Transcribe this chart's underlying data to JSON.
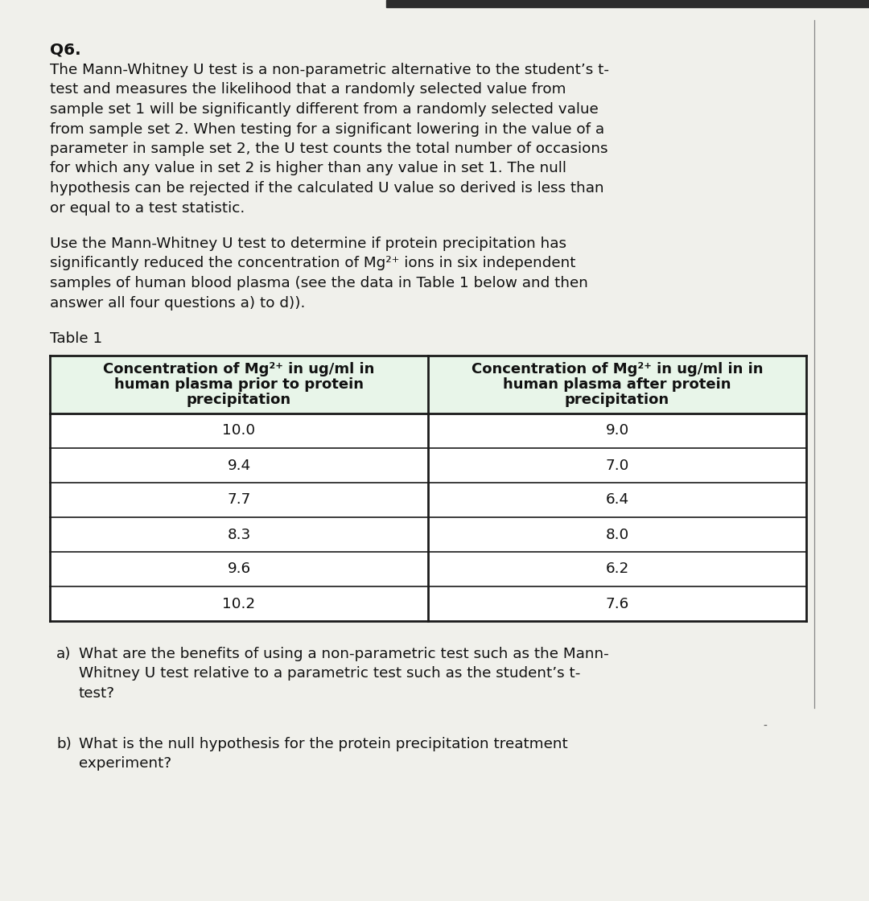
{
  "background_color": "#f0f0eb",
  "top_bar_color": "#2c2c2c",
  "q_label": "Q6.",
  "intro_lines": [
    "The Mann-Whitney U test is a non-parametric alternative to the student’s t-",
    "test and measures the likelihood that a randomly selected value from",
    "sample set 1 will be significantly different from a randomly selected value",
    "from sample set 2. When testing for a significant lowering in the value of a",
    "parameter in sample set 2, the U test counts the total number of occasions",
    "for which any value in set 2 is higher than any value in set 1. The null",
    "hypothesis can be rejected if the calculated U value so derived is less than",
    "or equal to a test statistic."
  ],
  "use_lines": [
    "Use the Mann-Whitney U test to determine if protein precipitation has",
    "significantly reduced the concentration of Mg²⁺ ions in six independent",
    "samples of human blood plasma (see the data in Table 1 below and then",
    "answer all four questions a) to d))."
  ],
  "table_label": "Table 1",
  "col1_header": [
    "Concentration of Mg²⁺ in ug/ml in",
    "human plasma prior to protein",
    "precipitation"
  ],
  "col2_header": [
    "Concentration of Mg²⁺ in ug/ml in in",
    "human plasma after protein",
    "precipitation"
  ],
  "col1_data": [
    "10.0",
    "9.4",
    "7.7",
    "8.3",
    "9.6",
    "10.2"
  ],
  "col2_data": [
    "9.0",
    "7.0",
    "6.4",
    "8.0",
    "6.2",
    "7.6"
  ],
  "header_bg": "#e8f5e9",
  "table_border_color": "#1a1a1a",
  "q_a_label": "a)",
  "q_a_lines": [
    "What are the benefits of using a non-parametric test such as the Mann-",
    "Whitney U test relative to a parametric test such as the student’s t-",
    "test?"
  ],
  "q_b_label": "b)",
  "q_b_lines": [
    "What is the null hypothesis for the protein precipitation treatment",
    "experiment?"
  ]
}
